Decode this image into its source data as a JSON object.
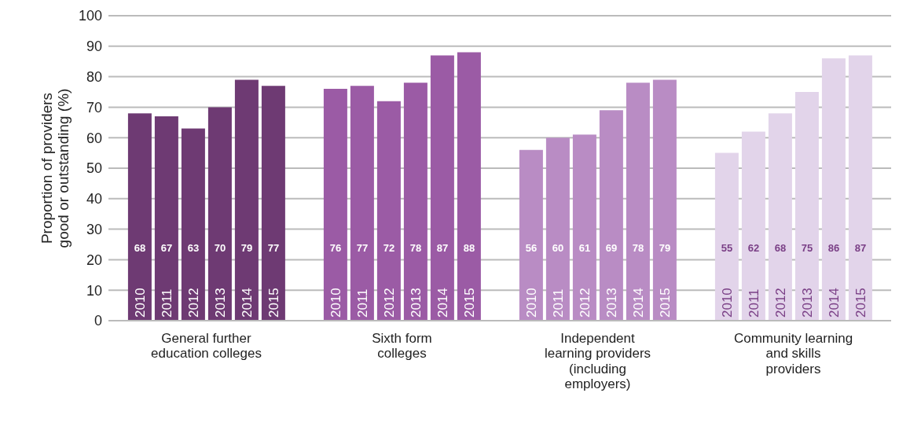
{
  "chart_data": {
    "type": "bar",
    "ylabel": "Proportion of providers good or outstanding (%)",
    "categories": [
      "General further education colleges",
      "Sixth form colleges",
      "Independent learning providers (including employers)",
      "Community learning and skills providers"
    ],
    "series": [
      {
        "name": "2010",
        "colors": [
          "#6e3a73",
          "#9b5ba5",
          "#b98cc4",
          "#e2d4ea"
        ],
        "values": [
          68,
          76,
          56,
          55
        ]
      },
      {
        "name": "2011",
        "colors": [
          "#6e3a73",
          "#9b5ba5",
          "#b98cc4",
          "#e2d4ea"
        ],
        "values": [
          67,
          77,
          60,
          62
        ]
      },
      {
        "name": "2012",
        "colors": [
          "#6e3a73",
          "#9b5ba5",
          "#b98cc4",
          "#e2d4ea"
        ],
        "values": [
          63,
          72,
          61,
          68
        ]
      },
      {
        "name": "2013",
        "colors": [
          "#6e3a73",
          "#9b5ba5",
          "#b98cc4",
          "#e2d4ea"
        ],
        "values": [
          70,
          78,
          69,
          75
        ]
      },
      {
        "name": "2014",
        "colors": [
          "#6e3a73",
          "#9b5ba5",
          "#b98cc4",
          "#e2d4ea"
        ],
        "values": [
          79,
          87,
          78,
          86
        ]
      },
      {
        "name": "2015",
        "colors": [
          "#6e3a73",
          "#9b5ba5",
          "#b98cc4",
          "#e2d4ea"
        ],
        "values": [
          77,
          88,
          79,
          87
        ]
      }
    ],
    "ylim": [
      0,
      100
    ],
    "yticks": [
      0,
      10,
      20,
      30,
      40,
      50,
      60,
      70,
      80,
      90,
      100
    ],
    "grid": "y",
    "data_labels": true
  }
}
